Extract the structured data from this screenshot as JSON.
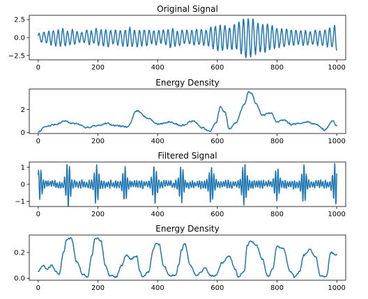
{
  "colors": {
    "line": "#1f77b4",
    "axes": "#000000",
    "background": "#ffffff"
  },
  "chart_data": [
    {
      "type": "line",
      "title": "Original Signal",
      "xlim": [
        -30,
        1030
      ],
      "ylim": [
        -3.1,
        3.1
      ],
      "xticks": [
        0,
        200,
        400,
        600,
        800,
        1000
      ],
      "yticks": [
        2.5,
        0.0,
        -2.5
      ],
      "ytick_labels": [
        "2.5",
        "0.0",
        "−2.5"
      ],
      "series": [
        {
          "generator": "oscillation",
          "n_points": 1001,
          "period": 16,
          "noise": 0.35,
          "envelope_x": [
            0,
            50,
            100,
            150,
            200,
            250,
            300,
            350,
            400,
            450,
            500,
            550,
            600,
            650,
            700,
            750,
            800,
            850,
            900,
            950,
            1000
          ],
          "envelope_y": [
            0.6,
            1.0,
            1.1,
            0.8,
            1.1,
            1.0,
            1.2,
            1.1,
            0.9,
            1.1,
            1.0,
            0.9,
            1.7,
            1.5,
            2.7,
            2.0,
            1.4,
            1.2,
            1.0,
            0.9,
            1.6
          ]
        }
      ]
    },
    {
      "type": "line",
      "title": "Energy Density",
      "xlim": [
        -30,
        1030
      ],
      "ylim": [
        -0.1,
        3.8
      ],
      "xticks": [
        0,
        200,
        400,
        600,
        800,
        1000
      ],
      "yticks": [
        2,
        0
      ],
      "ytick_labels": [
        "2",
        "0"
      ],
      "series": [
        {
          "generator": "curve",
          "n_points": 1001,
          "noise": 0.06,
          "x": [
            0,
            25,
            60,
            90,
            110,
            140,
            160,
            200,
            230,
            250,
            300,
            330,
            370,
            400,
            440,
            480,
            520,
            550,
            575,
            595,
            610,
            625,
            640,
            660,
            690,
            705,
            715,
            730,
            750,
            780,
            800,
            820,
            850,
            900,
            930,
            960,
            985,
            1000
          ],
          "y": [
            0.05,
            0.5,
            0.7,
            1.0,
            0.8,
            0.7,
            0.4,
            0.6,
            0.8,
            0.6,
            0.5,
            1.9,
            1.2,
            0.7,
            0.9,
            0.6,
            1.0,
            0.4,
            0.1,
            0.8,
            2.2,
            1.8,
            0.3,
            0.8,
            2.4,
            3.6,
            3.4,
            2.5,
            1.5,
            1.7,
            0.9,
            1.1,
            0.7,
            0.9,
            0.7,
            0.2,
            1.0,
            0.6
          ]
        }
      ]
    },
    {
      "type": "line",
      "title": "Filtered Signal",
      "xlim": [
        -30,
        1030
      ],
      "ylim": [
        -1.3,
        1.3
      ],
      "xticks": [
        0,
        200,
        400,
        600,
        800,
        1000
      ],
      "yticks": [
        1,
        0,
        -1
      ],
      "ytick_labels": [
        "1",
        "0",
        "−1"
      ],
      "series": [
        {
          "generator": "bursts",
          "n_points": 1001,
          "period": 8,
          "base_amp": 0.18,
          "noise": 0.15,
          "bursts": [
            {
              "x": 5,
              "amp": 0.7
            },
            {
              "x": 100,
              "amp": 1.15
            },
            {
              "x": 195,
              "amp": 1.0
            },
            {
              "x": 290,
              "amp": 0.85
            },
            {
              "x": 390,
              "amp": 1.0
            },
            {
              "x": 480,
              "amp": 0.95
            },
            {
              "x": 580,
              "amp": 0.95
            },
            {
              "x": 690,
              "amp": 1.1
            },
            {
              "x": 800,
              "amp": 0.85
            },
            {
              "x": 890,
              "amp": 0.95
            },
            {
              "x": 995,
              "amp": 1.05
            }
          ]
        }
      ]
    },
    {
      "type": "line",
      "title": "Energy Density",
      "xlim": [
        -30,
        1030
      ],
      "ylim": [
        -0.015,
        0.335
      ],
      "xticks": [
        0,
        200,
        400,
        600,
        800,
        1000
      ],
      "yticks": [
        0.2,
        0.0
      ],
      "ytick_labels": [
        "0.2",
        "0.0"
      ],
      "series": [
        {
          "generator": "curve",
          "n_points": 1001,
          "noise": 0.006,
          "x": [
            0,
            15,
            30,
            45,
            60,
            70,
            85,
            95,
            110,
            130,
            150,
            165,
            180,
            190,
            200,
            210,
            225,
            240,
            260,
            280,
            295,
            310,
            330,
            340,
            350,
            370,
            385,
            395,
            405,
            420,
            440,
            460,
            470,
            480,
            490,
            510,
            530,
            545,
            560,
            570,
            580,
            595,
            615,
            640,
            660,
            670,
            690,
            700,
            710,
            730,
            750,
            770,
            785,
            800,
            820,
            845,
            860,
            875,
            890,
            910,
            930,
            945,
            965,
            980,
            1000
          ],
          "y": [
            0.05,
            0.1,
            0.07,
            0.1,
            0.05,
            0.03,
            0.2,
            0.3,
            0.31,
            0.12,
            0.03,
            0.01,
            0.18,
            0.3,
            0.31,
            0.29,
            0.1,
            0.02,
            0.01,
            0.1,
            0.18,
            0.15,
            0.17,
            0.06,
            0.01,
            0.05,
            0.22,
            0.27,
            0.26,
            0.1,
            0.02,
            0.02,
            0.1,
            0.22,
            0.27,
            0.1,
            0.02,
            0.05,
            0.08,
            0.04,
            0.02,
            0.02,
            0.12,
            0.17,
            0.07,
            0.01,
            0.05,
            0.25,
            0.29,
            0.26,
            0.15,
            0.01,
            0.07,
            0.25,
            0.23,
            0.05,
            0.01,
            0.05,
            0.18,
            0.22,
            0.16,
            0.02,
            0.01,
            0.2,
            0.18
          ]
        }
      ]
    }
  ]
}
